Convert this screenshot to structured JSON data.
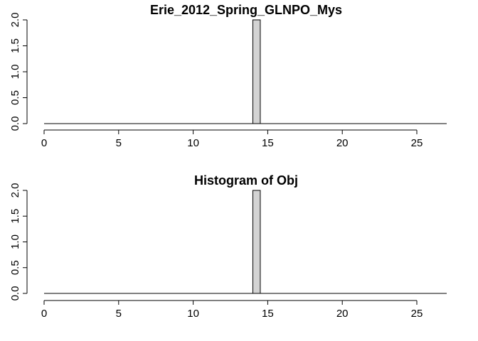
{
  "chart_data": [
    {
      "type": "bar",
      "title": "Erie_2012_Spring_GLNPO_Mys",
      "xlim": [
        0,
        27
      ],
      "ylim": [
        0,
        2
      ],
      "x_ticks": [
        0,
        5,
        10,
        15,
        20,
        25
      ],
      "y_ticks": [
        "0.0",
        "0.5",
        "1.0",
        "1.5",
        "2.0"
      ],
      "bins": [
        {
          "start": 14,
          "end": 14.5,
          "value": 2
        }
      ],
      "grid": false,
      "bar_color": "#d3d3d3"
    },
    {
      "type": "bar",
      "title": "Histogram of Obj",
      "xlim": [
        0,
        27
      ],
      "ylim": [
        0,
        2
      ],
      "x_ticks": [
        0,
        5,
        10,
        15,
        20,
        25
      ],
      "y_ticks": [
        "0.0",
        "0.5",
        "1.0",
        "1.5",
        "2.0"
      ],
      "bins": [
        {
          "start": 14,
          "end": 14.5,
          "value": 2
        }
      ],
      "grid": false,
      "bar_color": "#d3d3d3"
    }
  ]
}
